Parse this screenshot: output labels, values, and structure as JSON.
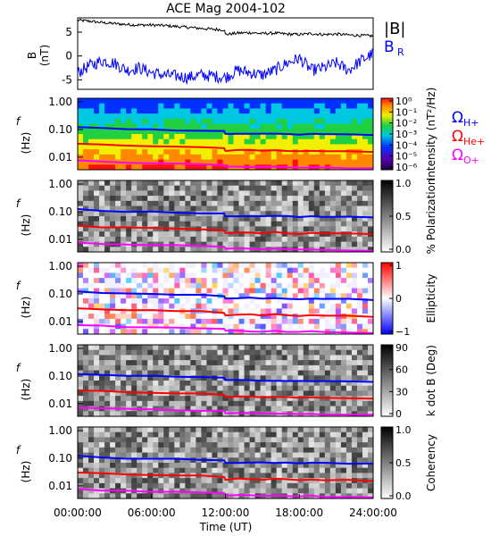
{
  "figure": {
    "title": "ACE Mag 2004-102",
    "time_axis_label": "Time (UT)",
    "time_ticks": [
      "00:00:00",
      "06:00:00",
      "12:00:00",
      "18:00:00",
      "24:00:00"
    ]
  },
  "colors": {
    "black_trace": "#000000",
    "blue_trace": "#0000ff",
    "h_plus": "#0000ff",
    "he_plus": "#ff0000",
    "o_plus": "#ff00ff"
  },
  "chart_data": [
    {
      "type": "line",
      "panel": "B",
      "ylabel": "B",
      "yunit": "(nT)",
      "ylim": [
        -7,
        8
      ],
      "yticks": [
        "5",
        "0",
        "-5"
      ],
      "xlim": [
        0,
        24
      ],
      "series": [
        {
          "name": "|B|",
          "color": "#000000",
          "x": [
            0,
            1,
            2,
            3,
            4,
            5,
            6,
            7,
            8,
            9,
            10,
            11,
            11.9,
            12,
            13,
            14,
            15,
            16,
            17,
            18,
            19,
            20,
            21,
            22,
            23,
            24
          ],
          "y": [
            7.5,
            7.3,
            7.0,
            6.8,
            6.6,
            6.5,
            6.5,
            6.4,
            6.2,
            6.0,
            5.8,
            5.6,
            5.5,
            4.5,
            4.8,
            4.9,
            4.7,
            4.8,
            4.6,
            4.5,
            4.7,
            4.5,
            4.6,
            4.4,
            4.3,
            4.2
          ]
        },
        {
          "name": "B",
          "subscript": "R",
          "color": "#0000ff",
          "x": [
            0,
            1,
            2,
            3,
            4,
            5,
            6,
            7,
            8,
            9,
            10,
            11,
            12,
            13,
            14,
            15,
            16,
            17,
            18,
            19,
            20,
            21,
            22,
            23,
            24
          ],
          "y": [
            -3.5,
            -2.0,
            -1.0,
            -1.5,
            -3.0,
            -2.5,
            -3.5,
            -4.0,
            -4.2,
            -4.5,
            -4.0,
            -4.2,
            -4.5,
            -3.0,
            -3.5,
            -4.0,
            -3.0,
            -1.5,
            -0.5,
            -3.0,
            -2.5,
            -1.5,
            -3.0,
            -1.0,
            0.5
          ]
        }
      ]
    },
    {
      "type": "heatmap",
      "panel": "Intensity",
      "ylabel": "f",
      "yunit": "(Hz)",
      "yscale": "log",
      "yticks": [
        "1.00",
        "0.10",
        "0.01"
      ],
      "colorbar_label": "Intensity (nT²/Hz)",
      "colorbar_ticks": [
        "10⁰",
        "10⁻¹",
        "10⁻²",
        "10⁻³",
        "10⁻⁴",
        "10⁻⁵",
        "10⁻⁶"
      ],
      "colorbar_style": "rainbow"
    },
    {
      "type": "heatmap",
      "panel": "Polarization",
      "ylabel": "f",
      "yunit": "(Hz)",
      "yticks": [
        "1.00",
        "0.10",
        "0.01"
      ],
      "colorbar_label": "% Polarization",
      "colorbar_ticks": [
        "1.0",
        "0.5",
        "0.0"
      ],
      "colorbar_style": "gray"
    },
    {
      "type": "heatmap",
      "panel": "Ellipticity",
      "ylabel": "f",
      "yunit": "(Hz)",
      "yticks": [
        "1.00",
        "0.10",
        "0.01"
      ],
      "colorbar_label": "Ellipticity",
      "colorbar_ticks": [
        "1",
        "0",
        "−1"
      ],
      "colorbar_style": "bwr"
    },
    {
      "type": "heatmap",
      "panel": "k dot B",
      "ylabel": "f",
      "yunit": "(Hz)",
      "yticks": [
        "1.00",
        "0.10",
        "0.01"
      ],
      "colorbar_label": "k dot B (Deg)",
      "colorbar_ticks": [
        "90",
        "60",
        "30",
        "0"
      ],
      "colorbar_style": "gray"
    },
    {
      "type": "heatmap",
      "panel": "Coherency",
      "ylabel": "f",
      "yunit": "(Hz)",
      "yticks": [
        "1.00",
        "0.10",
        "0.01"
      ],
      "colorbar_label": "Coherency",
      "colorbar_ticks": [
        "1.0",
        "0.5",
        "0.0"
      ],
      "colorbar_style": "gray"
    }
  ],
  "gyro_lines": {
    "x": [
      0,
      2,
      4,
      6,
      8,
      10,
      11.9,
      12,
      13,
      14,
      15,
      16,
      17,
      18,
      19,
      20,
      22,
      24
    ],
    "h_plus": [
      0.12,
      0.11,
      0.1,
      0.1,
      0.095,
      0.09,
      0.085,
      0.07,
      0.07,
      0.072,
      0.07,
      0.07,
      0.068,
      0.066,
      0.068,
      0.066,
      0.064,
      0.062
    ],
    "he_plus": [
      0.03,
      0.028,
      0.026,
      0.025,
      0.024,
      0.023,
      0.021,
      0.017,
      0.018,
      0.018,
      0.017,
      0.018,
      0.017,
      0.016,
      0.017,
      0.016,
      0.016,
      0.015
    ],
    "o_plus": [
      0.0075,
      0.007,
      0.0065,
      0.0062,
      0.006,
      0.0057,
      0.0053,
      0.0045,
      0.0046,
      0.0045,
      0.0044,
      0.0045,
      0.0043,
      0.0042,
      0.0043,
      0.0041,
      0.004,
      0.0039
    ]
  },
  "legend": {
    "b_mag": "|B|",
    "b_r": "B",
    "b_r_sub": "R",
    "omega": "Ω",
    "h_plus_sub": "H+",
    "he_plus_sub": "He+",
    "o_plus_sub": "O+"
  }
}
